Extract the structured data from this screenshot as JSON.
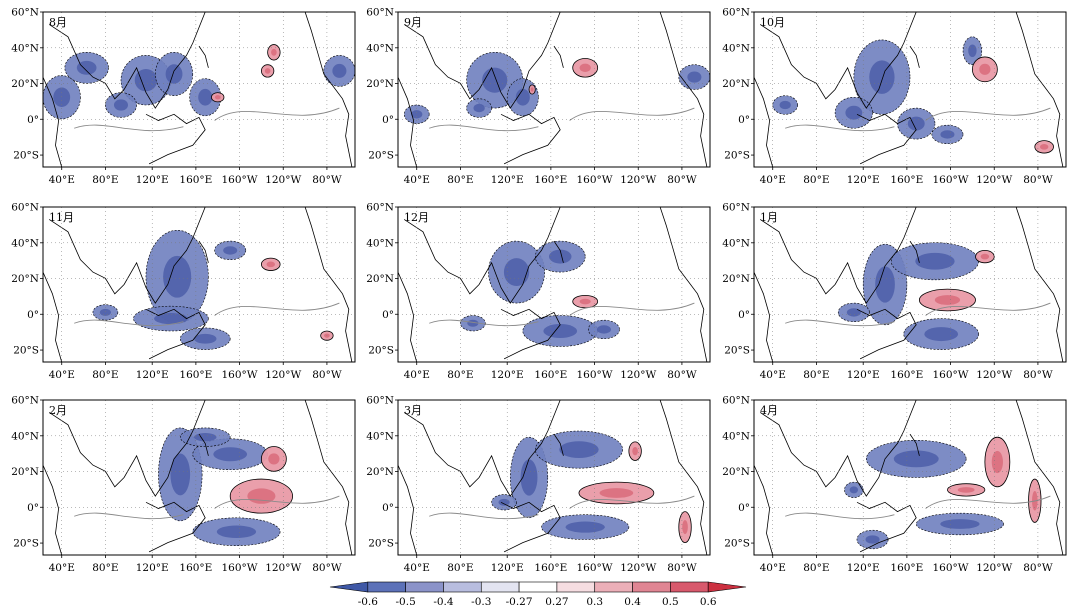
{
  "figure": {
    "panels": [
      {
        "month": "8月",
        "blue": [
          [
            0.06,
            0.55,
            0.06,
            0.14
          ],
          [
            0.14,
            0.36,
            0.07,
            0.1
          ],
          [
            0.33,
            0.44,
            0.08,
            0.16
          ],
          [
            0.42,
            0.4,
            0.06,
            0.14
          ],
          [
            0.52,
            0.55,
            0.05,
            0.12
          ],
          [
            0.95,
            0.38,
            0.05,
            0.1
          ],
          [
            0.25,
            0.6,
            0.05,
            0.08
          ]
        ],
        "red": [
          [
            0.74,
            0.26,
            0.02,
            0.05
          ],
          [
            0.72,
            0.38,
            0.02,
            0.04
          ],
          [
            0.56,
            0.55,
            0.02,
            0.03
          ]
        ]
      },
      {
        "month": "9月",
        "blue": [
          [
            0.31,
            0.44,
            0.09,
            0.18
          ],
          [
            0.4,
            0.55,
            0.05,
            0.12
          ],
          [
            0.26,
            0.62,
            0.04,
            0.06
          ],
          [
            0.06,
            0.66,
            0.04,
            0.06
          ],
          [
            0.95,
            0.42,
            0.05,
            0.08
          ]
        ],
        "red": [
          [
            0.6,
            0.36,
            0.04,
            0.06
          ],
          [
            0.43,
            0.5,
            0.01,
            0.03
          ]
        ]
      },
      {
        "month": "10月",
        "blue": [
          [
            0.41,
            0.42,
            0.09,
            0.24
          ],
          [
            0.32,
            0.65,
            0.06,
            0.1
          ],
          [
            0.52,
            0.72,
            0.06,
            0.1
          ],
          [
            0.62,
            0.79,
            0.05,
            0.06
          ],
          [
            0.7,
            0.25,
            0.03,
            0.09
          ],
          [
            0.1,
            0.6,
            0.04,
            0.06
          ]
        ],
        "red": [
          [
            0.74,
            0.37,
            0.04,
            0.08
          ],
          [
            0.93,
            0.87,
            0.03,
            0.04
          ]
        ]
      },
      {
        "month": "11月",
        "blue": [
          [
            0.43,
            0.45,
            0.1,
            0.3
          ],
          [
            0.41,
            0.72,
            0.12,
            0.08
          ],
          [
            0.2,
            0.68,
            0.04,
            0.05
          ],
          [
            0.6,
            0.28,
            0.05,
            0.06
          ],
          [
            0.52,
            0.85,
            0.08,
            0.07
          ]
        ],
        "red": [
          [
            0.73,
            0.37,
            0.03,
            0.04
          ],
          [
            0.91,
            0.83,
            0.02,
            0.03
          ]
        ]
      },
      {
        "month": "12月",
        "blue": [
          [
            0.38,
            0.42,
            0.09,
            0.2
          ],
          [
            0.52,
            0.32,
            0.08,
            0.1
          ],
          [
            0.52,
            0.8,
            0.12,
            0.1
          ],
          [
            0.24,
            0.75,
            0.04,
            0.05
          ],
          [
            0.66,
            0.79,
            0.05,
            0.06
          ]
        ],
        "red": [
          [
            0.6,
            0.61,
            0.04,
            0.04
          ]
        ]
      },
      {
        "month": "1月",
        "blue": [
          [
            0.42,
            0.5,
            0.07,
            0.26
          ],
          [
            0.58,
            0.35,
            0.14,
            0.12
          ],
          [
            0.6,
            0.82,
            0.12,
            0.1
          ],
          [
            0.32,
            0.68,
            0.05,
            0.06
          ]
        ],
        "red": [
          [
            0.62,
            0.6,
            0.09,
            0.07
          ],
          [
            0.74,
            0.32,
            0.03,
            0.04
          ]
        ]
      },
      {
        "month": "2月",
        "blue": [
          [
            0.44,
            0.48,
            0.07,
            0.3
          ],
          [
            0.6,
            0.35,
            0.12,
            0.1
          ],
          [
            0.62,
            0.85,
            0.14,
            0.09
          ],
          [
            0.52,
            0.24,
            0.08,
            0.06
          ]
        ],
        "red": [
          [
            0.7,
            0.62,
            0.1,
            0.11
          ],
          [
            0.74,
            0.38,
            0.04,
            0.08
          ]
        ]
      },
      {
        "month": "3月",
        "blue": [
          [
            0.42,
            0.5,
            0.06,
            0.26
          ],
          [
            0.58,
            0.32,
            0.14,
            0.12
          ],
          [
            0.6,
            0.82,
            0.14,
            0.08
          ],
          [
            0.34,
            0.66,
            0.04,
            0.05
          ]
        ],
        "red": [
          [
            0.7,
            0.6,
            0.12,
            0.07
          ],
          [
            0.76,
            0.33,
            0.02,
            0.06
          ],
          [
            0.92,
            0.82,
            0.02,
            0.1
          ]
        ]
      },
      {
        "month": "4月",
        "blue": [
          [
            0.52,
            0.38,
            0.16,
            0.12
          ],
          [
            0.66,
            0.8,
            0.14,
            0.07
          ],
          [
            0.38,
            0.9,
            0.05,
            0.06
          ],
          [
            0.32,
            0.58,
            0.03,
            0.05
          ]
        ],
        "red": [
          [
            0.78,
            0.4,
            0.04,
            0.16
          ],
          [
            0.68,
            0.58,
            0.06,
            0.04
          ],
          [
            0.9,
            0.65,
            0.02,
            0.14
          ]
        ]
      }
    ],
    "lat_ticks": [
      "60°N",
      "40°N",
      "20°N",
      "0°",
      "20°S"
    ],
    "lon_ticks": [
      "40°E",
      "80°E",
      "120°E",
      "160°E",
      "160°W",
      "120°W",
      "80°W"
    ]
  },
  "colorbar": {
    "labels": [
      "-0.6",
      "-0.5",
      "-0.4",
      "-0.3",
      "-0.27",
      "0.27",
      "0.3",
      "0.4",
      "0.5",
      "0.6"
    ],
    "colors": [
      "#3f58a6",
      "#5c71b8",
      "#8b93c9",
      "#b8bddf",
      "#e3e4f1",
      "#ffffff",
      "#f6dde1",
      "#ecafb8",
      "#e08593",
      "#d8596c",
      "#cc3040"
    ]
  }
}
